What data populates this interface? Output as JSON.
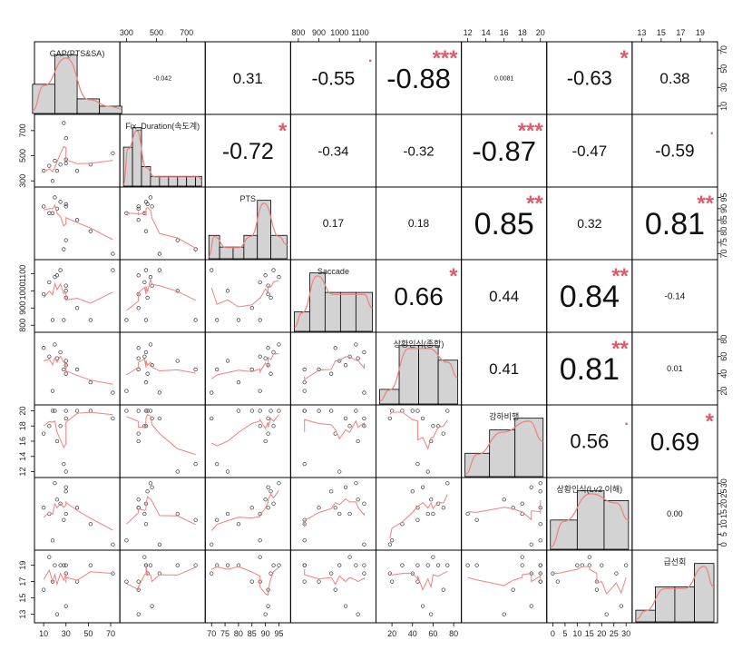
{
  "chart_data": {
    "type": "scatter-matrix",
    "colors": {
      "frame": "#000000",
      "smooth": "#f08080",
      "star": "#e05a6e",
      "bar": "#d3d3d3"
    },
    "variables": [
      {
        "name": "GAP(PTS&SA)",
        "ticks": [
          "10",
          "30",
          "50",
          "70"
        ],
        "tick_values": [
          10,
          30,
          50,
          70
        ],
        "range": [
          5,
          75
        ],
        "tick_side": "bottom-right",
        "hist": {
          "breaks": [
            0,
            20,
            40,
            60,
            80
          ],
          "heights": [
            2,
            4,
            1,
            0.5
          ],
          "hmax": 4
        }
      },
      {
        "name": "Fix_Duration(속도계)",
        "ticks": [
          "300",
          "500",
          "700"
        ],
        "tick_values": [
          300,
          500,
          700
        ],
        "range": [
          280,
          800
        ],
        "tick_side": "top-left",
        "hist": {
          "breaks": [
            280,
            340,
            400,
            460,
            520,
            580,
            640,
            700,
            760,
            800
          ],
          "heights": [
            4,
            6,
            2,
            1,
            1,
            1,
            1,
            1,
            1
          ],
          "hmax": 6
        }
      },
      {
        "name": "PTS",
        "ticks": [
          "70",
          "75",
          "80",
          "85",
          "90",
          "95"
        ],
        "tick_values": [
          70,
          75,
          80,
          85,
          90,
          95
        ],
        "range": [
          69,
          98
        ],
        "tick_side": "bottom-right",
        "hist": {
          "breaks": [
            69,
            73,
            78,
            82,
            87,
            92,
            98
          ],
          "heights": [
            2,
            1,
            1,
            2,
            5,
            2
          ],
          "hmax": 5
        }
      },
      {
        "name": "Saccade",
        "ticks": [
          "800",
          "900",
          "1000",
          "1100"
        ],
        "tick_values": [
          800,
          900,
          1000,
          1100
        ],
        "range": [
          780,
          1160
        ],
        "tick_side": "top-left",
        "hist": {
          "breaks": [
            780,
            855,
            930,
            1005,
            1080,
            1160
          ],
          "heights": [
            1,
            3,
            2,
            2,
            2
          ],
          "hmax": 3
        }
      },
      {
        "name": "상황인식(종합)",
        "ticks": [
          "20",
          "40",
          "60",
          "80"
        ],
        "tick_values": [
          20,
          40,
          60,
          80
        ],
        "range": [
          8,
          84
        ],
        "tick_side": "bottom-right",
        "hist": {
          "breaks": [
            8,
            27,
            46,
            65,
            84
          ],
          "heights": [
            1,
            4,
            4,
            3
          ],
          "hmax": 4
        }
      },
      {
        "name": "강하비행",
        "ticks": [
          "12",
          "14",
          "16",
          "18",
          "20"
        ],
        "tick_values": [
          12,
          14,
          16,
          18,
          20
        ],
        "range": [
          11.7,
          20.3
        ],
        "tick_side": "top-left",
        "hist": {
          "breaks": [
            11.7,
            14.4,
            17.2,
            20.3
          ],
          "heights": [
            2,
            4,
            5
          ],
          "hmax": 5
        }
      },
      {
        "name": "상황인식(Lv2 이해)",
        "ticks": [
          "0",
          "5",
          "10",
          "15",
          "20",
          "25",
          "30"
        ],
        "tick_values": [
          0,
          5,
          10,
          15,
          20,
          25,
          30
        ],
        "range": [
          -1,
          31
        ],
        "tick_side": "bottom-right",
        "hist": {
          "breaks": [
            -1,
            10,
            21,
            31
          ],
          "heights": [
            3,
            6,
            5
          ],
          "hmax": 6
        }
      },
      {
        "name": "급선회",
        "ticks": [
          "13",
          "15",
          "17",
          "19"
        ],
        "tick_values": [
          13,
          15,
          17,
          19
        ],
        "range": [
          12.4,
          20.4
        ],
        "tick_side": "top-left",
        "hist": {
          "breaks": [
            12.4,
            14.4,
            16.4,
            18.4,
            20.4
          ],
          "heights": [
            1,
            3,
            3,
            5
          ],
          "hmax": 5
        }
      }
    ],
    "correlations": [
      {
        "row": 0,
        "col": 1,
        "value": "-0.042",
        "stars": "",
        "size": 7
      },
      {
        "row": 0,
        "col": 2,
        "value": "0.31",
        "stars": "",
        "size": 17
      },
      {
        "row": 0,
        "col": 3,
        "value": "-0.55",
        "stars": ".",
        "size": 21
      },
      {
        "row": 0,
        "col": 4,
        "value": "-0.88",
        "stars": "***",
        "size": 31
      },
      {
        "row": 0,
        "col": 5,
        "value": "0.0081",
        "stars": "",
        "size": 7
      },
      {
        "row": 0,
        "col": 6,
        "value": "-0.63",
        "stars": "*",
        "size": 22
      },
      {
        "row": 0,
        "col": 7,
        "value": "0.38",
        "stars": "",
        "size": 17
      },
      {
        "row": 1,
        "col": 2,
        "value": "-0.72",
        "stars": "*",
        "size": 25
      },
      {
        "row": 1,
        "col": 3,
        "value": "-0.34",
        "stars": "",
        "size": 15
      },
      {
        "row": 1,
        "col": 4,
        "value": "-0.32",
        "stars": "",
        "size": 15
      },
      {
        "row": 1,
        "col": 5,
        "value": "-0.87",
        "stars": "***",
        "size": 31
      },
      {
        "row": 1,
        "col": 6,
        "value": "-0.47",
        "stars": "",
        "size": 17
      },
      {
        "row": 1,
        "col": 7,
        "value": "-0.59",
        "stars": ".",
        "size": 19
      },
      {
        "row": 2,
        "col": 3,
        "value": "0.17",
        "stars": "",
        "size": 12
      },
      {
        "row": 2,
        "col": 4,
        "value": "0.18",
        "stars": "",
        "size": 12
      },
      {
        "row": 2,
        "col": 5,
        "value": "0.85",
        "stars": "**",
        "size": 34
      },
      {
        "row": 2,
        "col": 6,
        "value": "0.32",
        "stars": "",
        "size": 14
      },
      {
        "row": 2,
        "col": 7,
        "value": "0.81",
        "stars": "**",
        "size": 34
      },
      {
        "row": 3,
        "col": 4,
        "value": "0.66",
        "stars": "*",
        "size": 28
      },
      {
        "row": 3,
        "col": 5,
        "value": "0.44",
        "stars": "",
        "size": 17
      },
      {
        "row": 3,
        "col": 6,
        "value": "0.84",
        "stars": "**",
        "size": 34
      },
      {
        "row": 3,
        "col": 7,
        "value": "-0.14",
        "stars": "",
        "size": 10
      },
      {
        "row": 4,
        "col": 5,
        "value": "0.41",
        "stars": "",
        "size": 17
      },
      {
        "row": 4,
        "col": 6,
        "value": "0.81",
        "stars": "**",
        "size": 34
      },
      {
        "row": 4,
        "col": 7,
        "value": "0.01",
        "stars": "",
        "size": 9
      },
      {
        "row": 5,
        "col": 6,
        "value": "0.56",
        "stars": ".",
        "size": 22
      },
      {
        "row": 5,
        "col": 7,
        "value": "0.69",
        "stars": "*",
        "size": 28
      },
      {
        "row": 6,
        "col": 7,
        "value": "0.00",
        "stars": "",
        "size": 9
      }
    ],
    "observations": [
      [
        72,
        520,
        70,
        1120,
        18,
        19,
        0,
        18
      ],
      [
        52,
        430,
        80,
        830,
        30,
        20,
        10,
        19
      ],
      [
        40,
        380,
        85,
        900,
        45,
        20,
        18,
        17
      ],
      [
        30,
        640,
        76,
        1000,
        55,
        12,
        15,
        19
      ],
      [
        25,
        430,
        93,
        1120,
        65,
        18,
        20,
        19
      ],
      [
        30,
        470,
        91,
        1030,
        50,
        19,
        28,
        14
      ],
      [
        20,
        460,
        95,
        1080,
        74,
        20,
        30,
        19
      ],
      [
        15,
        420,
        88,
        1050,
        60,
        18,
        15,
        20
      ],
      [
        10,
        380,
        91,
        980,
        70,
        17,
        18,
        16
      ],
      [
        28,
        760,
        72,
        830,
        45,
        13,
        12,
        19
      ],
      [
        30,
        440,
        92,
        960,
        40,
        20,
        26,
        18
      ],
      [
        22,
        380,
        90,
        1090,
        58,
        16,
        22,
        13
      ],
      [
        18,
        300,
        88,
        830,
        20,
        20,
        2,
        17
      ]
    ]
  }
}
